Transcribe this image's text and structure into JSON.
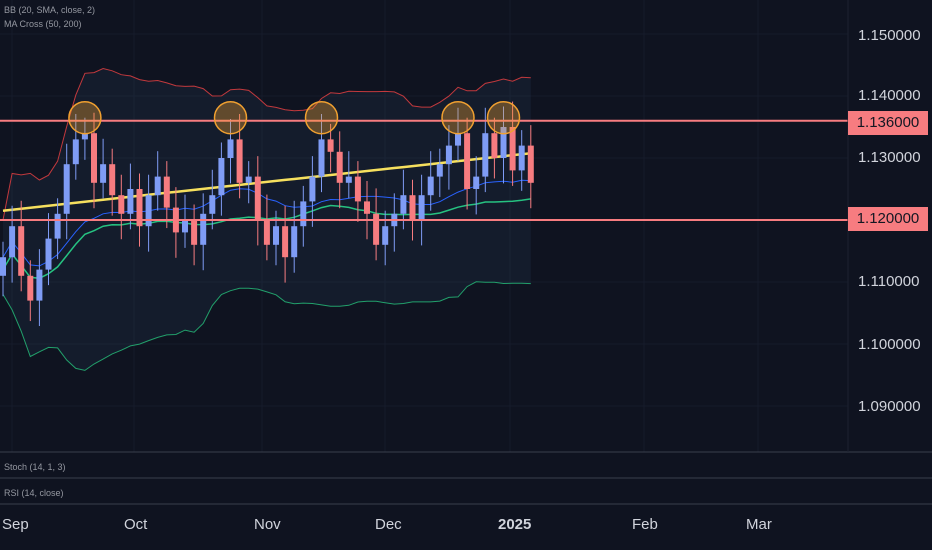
{
  "indicators": {
    "bb": "BB (20, SMA, close, 2)",
    "ma_cross": "MA Cross (50, 200)",
    "stoch": "Stoch (14, 1, 3)",
    "rsi": "RSI (14, close)"
  },
  "colors": {
    "background": "#0f1320",
    "up_candle": "#7f9cf5",
    "down_candle": "#f77c80",
    "bb_upper": "#c2393d",
    "bb_lower": "#22a06b",
    "bb_basis": "#2962ff",
    "ma_200": "#f6e05e",
    "ma_50": "#26c281",
    "level_line": "#f77c80",
    "circle_marker": "#f0a030"
  },
  "chart_data": {
    "type": "candlestick",
    "title": "",
    "xlabel": "",
    "ylabel": "",
    "ylim": [
      1.084,
      1.155
    ],
    "y_ticks": [
      "1.150000",
      "1.140000",
      "1.130000",
      "1.110000",
      "1.100000",
      "1.090000"
    ],
    "x_ticks": [
      "Sep",
      "Oct",
      "Nov",
      "Dec",
      "2025",
      "Feb",
      "Mar"
    ],
    "levels": [
      {
        "value": 1.136,
        "label": "1.136000"
      },
      {
        "value": 1.12,
        "label": "1.120000"
      }
    ],
    "resistance_touches": 5,
    "approximate_close_series": [
      1.114,
      1.119,
      1.111,
      1.107,
      1.112,
      1.117,
      1.121,
      1.129,
      1.133,
      1.134,
      1.126,
      1.129,
      1.124,
      1.121,
      1.125,
      1.119,
      1.124,
      1.127,
      1.122,
      1.118,
      1.12,
      1.116,
      1.121,
      1.124,
      1.13,
      1.133,
      1.126,
      1.127,
      1.12,
      1.116,
      1.119,
      1.114,
      1.119,
      1.123,
      1.127,
      1.133,
      1.131,
      1.126,
      1.127,
      1.123,
      1.121,
      1.116,
      1.119,
      1.121,
      1.124,
      1.12,
      1.124,
      1.127,
      1.129,
      1.132,
      1.134,
      1.125,
      1.127,
      1.134,
      1.13,
      1.135,
      1.128,
      1.132,
      1.126
    ]
  }
}
